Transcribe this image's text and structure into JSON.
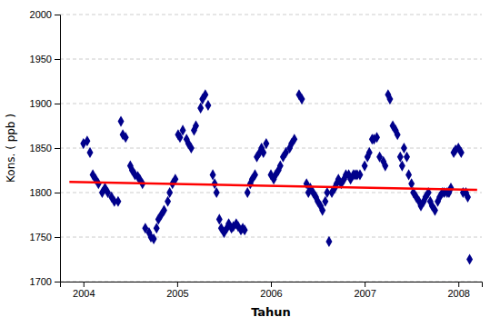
{
  "chart_data": {
    "type": "scatter",
    "xlabel": "Tahun",
    "ylabel": "Kons. ( ppb )",
    "xlim": [
      2003.75,
      2008.25
    ],
    "ylim": [
      1700,
      2000
    ],
    "xticks": [
      2004,
      2005,
      2006,
      2007,
      2008
    ],
    "yticks": [
      1700,
      1750,
      1800,
      1850,
      1900,
      1950,
      2000
    ],
    "grid": "y",
    "series": [
      {
        "type": "scatter",
        "color": "#00008B",
        "marker": "diamond",
        "x": [
          2004.0,
          2004.04,
          2004.07,
          2004.1,
          2004.13,
          2004.16,
          2004.2,
          2004.23,
          2004.26,
          2004.3,
          2004.33,
          2004.37,
          2004.4,
          2004.42,
          2004.45,
          2004.5,
          2004.52,
          2004.55,
          2004.58,
          2004.6,
          2004.63,
          2004.66,
          2004.7,
          2004.72,
          2004.75,
          2004.78,
          2004.8,
          2004.83,
          2004.86,
          2004.9,
          2004.92,
          2004.95,
          2004.98,
          2005.01,
          2005.03,
          2005.06,
          2005.1,
          2005.12,
          2005.15,
          2005.18,
          2005.2,
          2005.25,
          2005.27,
          2005.3,
          2005.33,
          2005.38,
          2005.4,
          2005.42,
          2005.45,
          2005.47,
          2005.5,
          2005.53,
          2005.55,
          2005.58,
          2005.6,
          2005.63,
          2005.65,
          2005.68,
          2005.7,
          2005.72,
          2005.75,
          2005.78,
          2005.8,
          2005.83,
          2005.85,
          2005.88,
          2005.9,
          2005.92,
          2005.95,
          2006.0,
          2006.03,
          2006.05,
          2006.08,
          2006.1,
          2006.13,
          2006.16,
          2006.2,
          2006.22,
          2006.25,
          2006.3,
          2006.33,
          2006.38,
          2006.4,
          2006.42,
          2006.45,
          2006.48,
          2006.5,
          2006.53,
          2006.55,
          2006.58,
          2006.6,
          2006.62,
          2006.65,
          2006.68,
          2006.7,
          2006.72,
          2006.75,
          2006.78,
          2006.8,
          2006.83,
          2006.85,
          2006.88,
          2006.9,
          2006.92,
          2006.95,
          2007.0,
          2007.03,
          2007.05,
          2007.08,
          2007.1,
          2007.13,
          2007.16,
          2007.2,
          2007.22,
          2007.25,
          2007.27,
          2007.3,
          2007.33,
          2007.35,
          2007.38,
          2007.4,
          2007.42,
          2007.45,
          2007.47,
          2007.5,
          2007.52,
          2007.55,
          2007.58,
          2007.6,
          2007.63,
          2007.65,
          2007.68,
          2007.7,
          2007.72,
          2007.75,
          2007.78,
          2007.8,
          2007.83,
          2007.85,
          2007.88,
          2007.9,
          2007.92,
          2007.95,
          2007.97,
          2008.0,
          2008.03,
          2008.05,
          2008.08,
          2008.1,
          2008.12
        ],
        "values": [
          1855,
          1858,
          1845,
          1820,
          1815,
          1810,
          1800,
          1805,
          1800,
          1795,
          1790,
          1790,
          1880,
          1865,
          1862,
          1830,
          1825,
          1820,
          1818,
          1815,
          1810,
          1760,
          1755,
          1750,
          1748,
          1760,
          1770,
          1775,
          1780,
          1790,
          1800,
          1810,
          1815,
          1865,
          1862,
          1870,
          1860,
          1855,
          1850,
          1870,
          1875,
          1895,
          1905,
          1910,
          1898,
          1820,
          1810,
          1800,
          1770,
          1760,
          1755,
          1760,
          1765,
          1760,
          1762,
          1765,
          1762,
          1758,
          1760,
          1758,
          1800,
          1810,
          1815,
          1820,
          1840,
          1845,
          1850,
          1845,
          1855,
          1820,
          1815,
          1820,
          1825,
          1830,
          1840,
          1845,
          1850,
          1855,
          1860,
          1910,
          1905,
          1810,
          1800,
          1805,
          1800,
          1795,
          1790,
          1785,
          1780,
          1790,
          1800,
          1745,
          1800,
          1805,
          1810,
          1815,
          1810,
          1815,
          1820,
          1820,
          1815,
          1820,
          1820,
          1820,
          1820,
          1830,
          1840,
          1845,
          1860,
          1860,
          1862,
          1840,
          1835,
          1830,
          1910,
          1905,
          1875,
          1870,
          1865,
          1840,
          1830,
          1850,
          1840,
          1820,
          1810,
          1800,
          1795,
          1790,
          1785,
          1790,
          1795,
          1800,
          1790,
          1785,
          1780,
          1790,
          1795,
          1800,
          1800,
          1800,
          1800,
          1805,
          1845,
          1848,
          1850,
          1845,
          1800,
          1800,
          1795,
          1725
        ]
      },
      {
        "type": "line",
        "color": "#FF0000",
        "line_style": "solid",
        "x": [
          2003.85,
          2008.2
        ],
        "values": [
          1812,
          1803
        ]
      }
    ]
  }
}
